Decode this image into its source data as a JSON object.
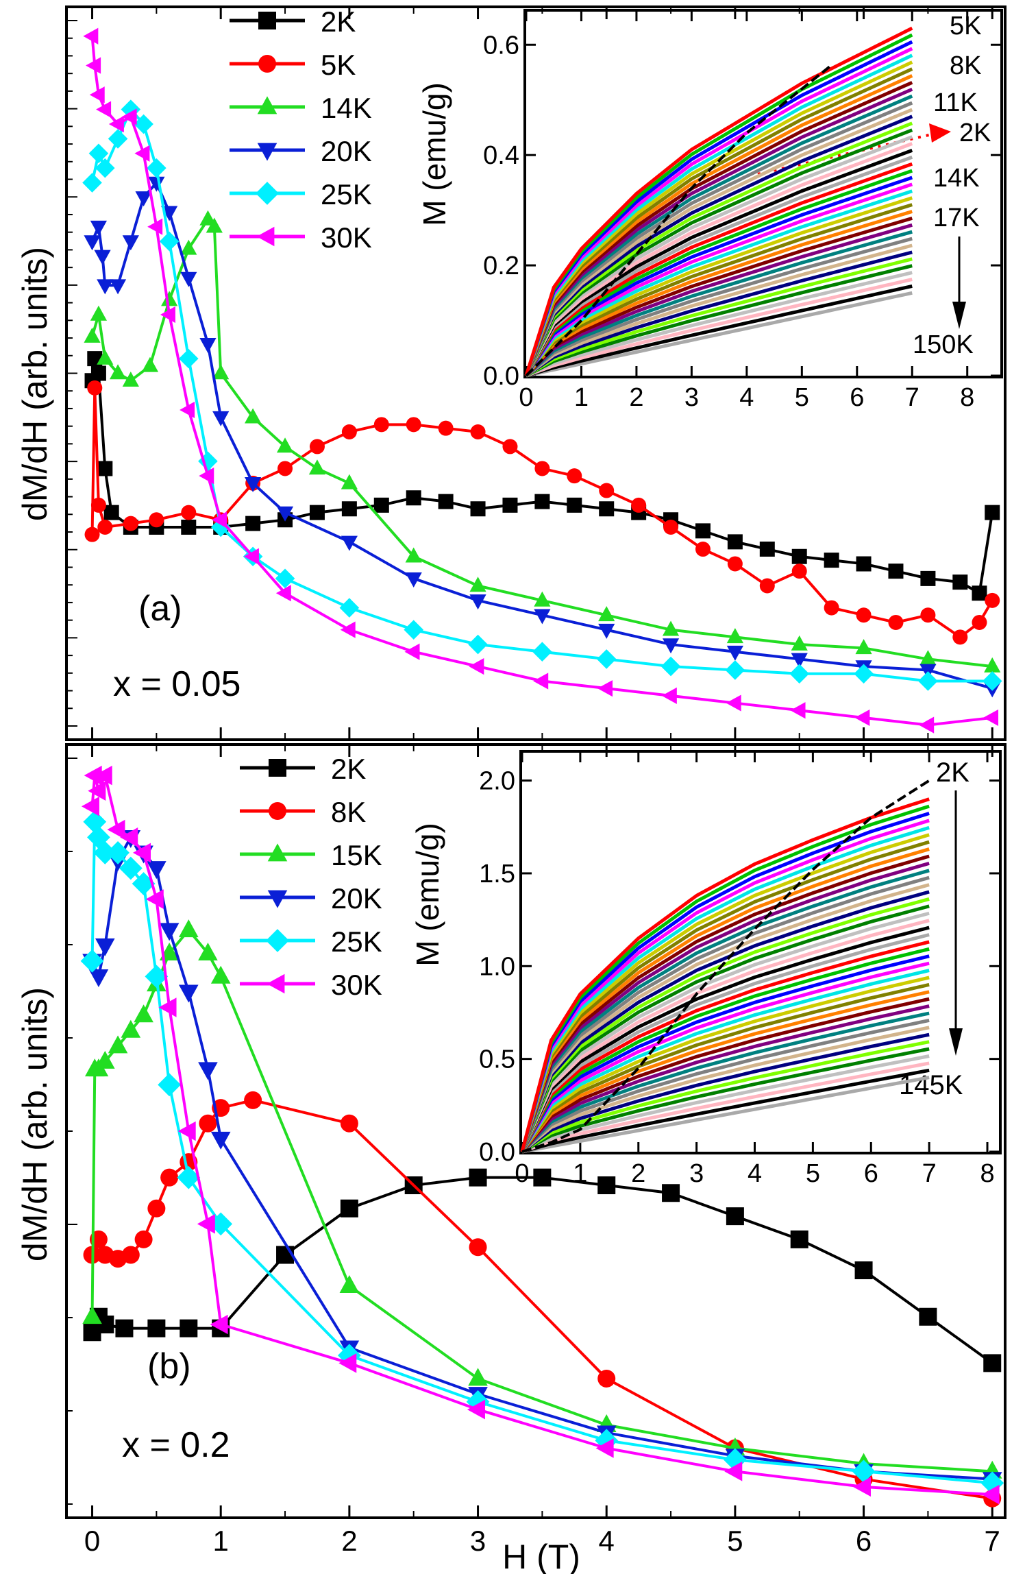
{
  "chart_data": [
    {
      "panel": "a",
      "type": "line",
      "panel_label": "(a)",
      "composition": "x = 0.05",
      "xlabel": "H (T)",
      "ylabel": "dM/dH (arb. units)",
      "xlim": [
        -0.2,
        7.1
      ],
      "ylim": [
        0,
        100
      ],
      "xticks": [
        "0",
        "1",
        "2",
        "3",
        "4",
        "5",
        "6",
        "7"
      ],
      "legend": {
        "placement": "top-left",
        "entries": [
          "2K",
          "5K",
          "14K",
          "20K",
          "25K",
          "30K"
        ]
      },
      "series": [
        {
          "name": "2K",
          "color": "#000000",
          "marker": "square",
          "x": [
            0,
            0.02,
            0.05,
            0.1,
            0.15,
            0.3,
            0.5,
            0.75,
            1,
            1.25,
            1.5,
            1.75,
            2,
            2.25,
            2.5,
            2.75,
            3,
            3.25,
            3.5,
            3.75,
            4,
            4.25,
            4.5,
            4.75,
            5,
            5.25,
            5.5,
            5.75,
            6,
            6.25,
            6.5,
            6.75,
            6.9,
            7
          ],
          "y": [
            49,
            52,
            50,
            37,
            31,
            29,
            29,
            29,
            29,
            29.5,
            30,
            31,
            31.5,
            32,
            33,
            32.5,
            31.5,
            32,
            32.5,
            32,
            31.5,
            31,
            30,
            28.5,
            27,
            26,
            25,
            24.5,
            24,
            23,
            22,
            21.5,
            20,
            31
          ]
        },
        {
          "name": "5K",
          "color": "#ff0000",
          "marker": "circle",
          "x": [
            0,
            0.02,
            0.05,
            0.1,
            0.3,
            0.5,
            0.75,
            1,
            1.25,
            1.5,
            1.75,
            2,
            2.25,
            2.5,
            2.75,
            3,
            3.25,
            3.5,
            3.75,
            4,
            4.25,
            4.5,
            4.75,
            5,
            5.25,
            5.5,
            5.75,
            6,
            6.25,
            6.5,
            6.75,
            6.9,
            7
          ],
          "y": [
            28,
            48,
            32,
            29,
            29.5,
            30,
            31,
            30,
            35,
            37,
            40,
            42,
            43,
            43,
            42.5,
            42,
            40,
            37,
            36,
            34,
            32,
            29,
            26,
            24,
            21,
            23,
            18,
            17,
            16,
            17,
            14,
            16,
            19
          ]
        },
        {
          "name": "14K",
          "color": "#22dd22",
          "marker": "triangle-up",
          "x": [
            0,
            0.05,
            0.1,
            0.2,
            0.3,
            0.45,
            0.6,
            0.75,
            0.9,
            0.95,
            1,
            1.25,
            1.5,
            1.75,
            2,
            2.5,
            3,
            3.5,
            4,
            4.5,
            5,
            5.5,
            6,
            6.5,
            7
          ],
          "y": [
            55,
            58,
            52,
            50,
            49,
            51,
            60,
            67,
            71,
            70,
            50,
            44,
            40,
            37,
            35,
            25,
            21,
            19,
            17,
            15,
            14,
            13,
            12.5,
            11,
            10
          ]
        },
        {
          "name": "20K",
          "color": "#0a1fd6",
          "marker": "triangle-down",
          "x": [
            0,
            0.05,
            0.08,
            0.1,
            0.2,
            0.3,
            0.4,
            0.5,
            0.6,
            0.75,
            0.9,
            1,
            1.25,
            1.5,
            2,
            2.5,
            3,
            3.5,
            4,
            4.5,
            5,
            5.5,
            6,
            6.5,
            7
          ],
          "y": [
            68,
            70,
            66,
            62,
            62,
            68,
            74,
            76,
            72,
            63,
            54,
            44,
            35,
            31,
            27,
            22,
            19,
            17,
            15,
            13,
            12,
            11,
            10,
            9.5,
            7
          ]
        },
        {
          "name": "25K",
          "color": "#00f0ff",
          "marker": "diamond",
          "x": [
            0,
            0.05,
            0.1,
            0.2,
            0.3,
            0.4,
            0.5,
            0.6,
            0.75,
            0.9,
            1,
            1.25,
            1.5,
            2,
            2.5,
            3,
            3.5,
            4,
            4.5,
            5,
            5.5,
            6,
            6.5,
            7
          ],
          "y": [
            76,
            80,
            78,
            82,
            86,
            84,
            78,
            68,
            52,
            38,
            29,
            25,
            22,
            18,
            15,
            13,
            12,
            11,
            10,
            9.5,
            9,
            9,
            8,
            8
          ]
        },
        {
          "name": "30K",
          "color": "#ff00ff",
          "marker": "triangle-left",
          "x": [
            0,
            0.02,
            0.05,
            0.1,
            0.2,
            0.3,
            0.4,
            0.5,
            0.6,
            0.75,
            0.9,
            1,
            1.25,
            1.5,
            2,
            2.5,
            3,
            3.5,
            4,
            4.5,
            5,
            5.5,
            6,
            6.5,
            7
          ],
          "y": [
            96,
            92,
            88,
            86,
            84,
            85,
            80,
            70,
            58,
            45,
            36,
            30,
            25,
            20,
            15,
            12,
            10,
            8,
            7,
            6,
            5,
            4,
            3,
            2,
            3
          ]
        }
      ]
    },
    {
      "panel": "b",
      "type": "line",
      "panel_label": "(b)",
      "composition": "x = 0.2",
      "xlabel": "H (T)",
      "ylabel": "dM/dH (arb. units)",
      "xlim": [
        -0.2,
        7.1
      ],
      "ylim": [
        0,
        100
      ],
      "xticks": [
        "0",
        "1",
        "2",
        "3",
        "4",
        "5",
        "6",
        "7"
      ],
      "legend": {
        "placement": "top-left",
        "entries": [
          "2K",
          "8K",
          "15K",
          "20K",
          "25K",
          "30K"
        ]
      },
      "series": [
        {
          "name": "2K",
          "color": "#000000",
          "marker": "square",
          "x": [
            0,
            0.05,
            0.1,
            0.25,
            0.5,
            0.75,
            1,
            1.5,
            2,
            2.5,
            3,
            3.5,
            4,
            4.5,
            5,
            5.5,
            6,
            6.5,
            7
          ],
          "y": [
            24,
            26,
            25,
            24.5,
            24.5,
            24.5,
            24.5,
            34,
            40,
            43,
            44,
            44,
            43,
            42,
            39,
            36,
            32,
            26,
            20
          ]
        },
        {
          "name": "8K",
          "color": "#ff0000",
          "marker": "circle",
          "x": [
            0,
            0.05,
            0.1,
            0.2,
            0.3,
            0.4,
            0.5,
            0.6,
            0.75,
            0.9,
            1,
            1.25,
            2,
            3,
            4,
            5,
            6,
            7
          ],
          "y": [
            34,
            36,
            34,
            33.5,
            34,
            36,
            40,
            44,
            46,
            51,
            53,
            54,
            51,
            35,
            18,
            9,
            5,
            2.5
          ]
        },
        {
          "name": "15K",
          "color": "#22dd22",
          "marker": "triangle-up",
          "x": [
            0,
            0.02,
            0.05,
            0.1,
            0.2,
            0.3,
            0.4,
            0.5,
            0.6,
            0.75,
            0.9,
            1,
            2,
            3,
            4,
            5,
            6,
            7
          ],
          "y": [
            26,
            58,
            58,
            59,
            61,
            63,
            65,
            69,
            73,
            76,
            73,
            70,
            30,
            18,
            12,
            9,
            7,
            6
          ]
        },
        {
          "name": "20K",
          "color": "#0a1fd6",
          "marker": "triangle-down",
          "x": [
            0,
            0.05,
            0.1,
            0.2,
            0.3,
            0.4,
            0.5,
            0.6,
            0.75,
            0.9,
            1,
            2,
            3,
            4,
            5,
            6,
            7
          ],
          "y": [
            72,
            70,
            74,
            85,
            88,
            86,
            84,
            76,
            68,
            58,
            49,
            22,
            16,
            11,
            8,
            6,
            5
          ]
        },
        {
          "name": "25K",
          "color": "#00f0ff",
          "marker": "diamond",
          "x": [
            0,
            0.02,
            0.05,
            0.1,
            0.2,
            0.3,
            0.4,
            0.5,
            0.6,
            0.75,
            1,
            2,
            3,
            4,
            5,
            6,
            7
          ],
          "y": [
            72,
            90,
            88,
            86,
            86,
            84,
            82,
            70,
            56,
            44,
            38,
            21,
            15,
            10,
            7.5,
            6,
            4.5
          ]
        },
        {
          "name": "30K",
          "color": "#ff00ff",
          "marker": "triangle-left",
          "x": [
            0,
            0.02,
            0.05,
            0.1,
            0.2,
            0.3,
            0.4,
            0.5,
            0.6,
            0.75,
            0.9,
            1,
            2,
            3,
            4,
            5,
            6,
            7
          ],
          "y": [
            92,
            96,
            94,
            96,
            89,
            88,
            86,
            80,
            66,
            50,
            38,
            25,
            20,
            14,
            9,
            6,
            4,
            3
          ]
        }
      ]
    },
    {
      "panel": "a-inset",
      "type": "line",
      "xlabel": "",
      "ylabel": "M (emu/g)",
      "xlim": [
        0,
        8.6
      ],
      "ylim": [
        0,
        0.66
      ],
      "xticks": [
        "0",
        "1",
        "2",
        "3",
        "4",
        "5",
        "6",
        "7",
        "8"
      ],
      "yticks": [
        "0.0",
        "0.2",
        "0.4",
        "0.6"
      ],
      "curve_count": 40,
      "curve_colors": [
        "#ff0000",
        "#00c000",
        "#0000ff",
        "#ff00ff",
        "#00e5e5",
        "#cccc00",
        "#808000",
        "#ff8000",
        "#800000",
        "#800080",
        "#008080",
        "#808080",
        "#d2b48c",
        "#000080",
        "#7fff00",
        "#008000",
        "#c0c0c0",
        "#ffb6c1",
        "#000000",
        "#a9a9a9"
      ],
      "top_curve": {
        "name": "5K",
        "x": [
          0,
          0.5,
          1,
          2,
          3,
          4,
          5,
          6,
          7
        ],
        "y": [
          0,
          0.16,
          0.23,
          0.33,
          0.41,
          0.47,
          0.53,
          0.58,
          0.63
        ]
      },
      "bottom_curve": {
        "name": "150K",
        "x": [
          0,
          7
        ],
        "y": [
          0,
          0.15
        ]
      },
      "special_2K_curve": {
        "name": "2K",
        "color": "#000000",
        "x": [
          0,
          0.5,
          1,
          1.5,
          2,
          3,
          4,
          5,
          5.5
        ],
        "y": [
          0,
          0.05,
          0.1,
          0.16,
          0.22,
          0.34,
          0.44,
          0.52,
          0.56
        ]
      },
      "annotations": [
        "5K",
        "8K",
        "11K",
        "2K",
        "14K",
        "17K",
        "150K"
      ]
    },
    {
      "panel": "b-inset",
      "type": "line",
      "xlabel": "",
      "ylabel": "M (emu/g)",
      "xlim": [
        0,
        8.2
      ],
      "ylim": [
        0,
        2.15
      ],
      "xticks": [
        "0",
        "1",
        "2",
        "3",
        "4",
        "5",
        "6",
        "7",
        "8"
      ],
      "yticks": [
        "0.0",
        "0.5",
        "1.0",
        "1.5",
        "2.0"
      ],
      "curve_count": 40,
      "curve_colors": [
        "#ff0000",
        "#00c000",
        "#0000ff",
        "#ff00ff",
        "#00e5e5",
        "#cccc00",
        "#808000",
        "#ff8000",
        "#800000",
        "#800080",
        "#008080",
        "#808080",
        "#d2b48c",
        "#000080",
        "#7fff00",
        "#008000",
        "#c0c0c0",
        "#ffb6c1",
        "#000000",
        "#a9a9a9"
      ],
      "top_curve": {
        "name": "8K",
        "x": [
          0,
          0.5,
          1,
          2,
          3,
          4,
          5,
          6,
          7
        ],
        "y": [
          0,
          0.6,
          0.85,
          1.15,
          1.38,
          1.55,
          1.68,
          1.8,
          1.9
        ]
      },
      "bottom_curve": {
        "name": "145K",
        "x": [
          0,
          7
        ],
        "y": [
          0,
          0.4
        ]
      },
      "special_2K_curve": {
        "name": "2K",
        "color": "#000000",
        "x": [
          0,
          0.5,
          1,
          2,
          3,
          4,
          5,
          6,
          7
        ],
        "y": [
          0,
          0.05,
          0.12,
          0.45,
          0.85,
          1.2,
          1.52,
          1.8,
          2.0
        ]
      },
      "annotations": [
        "2K",
        "145K"
      ]
    }
  ]
}
